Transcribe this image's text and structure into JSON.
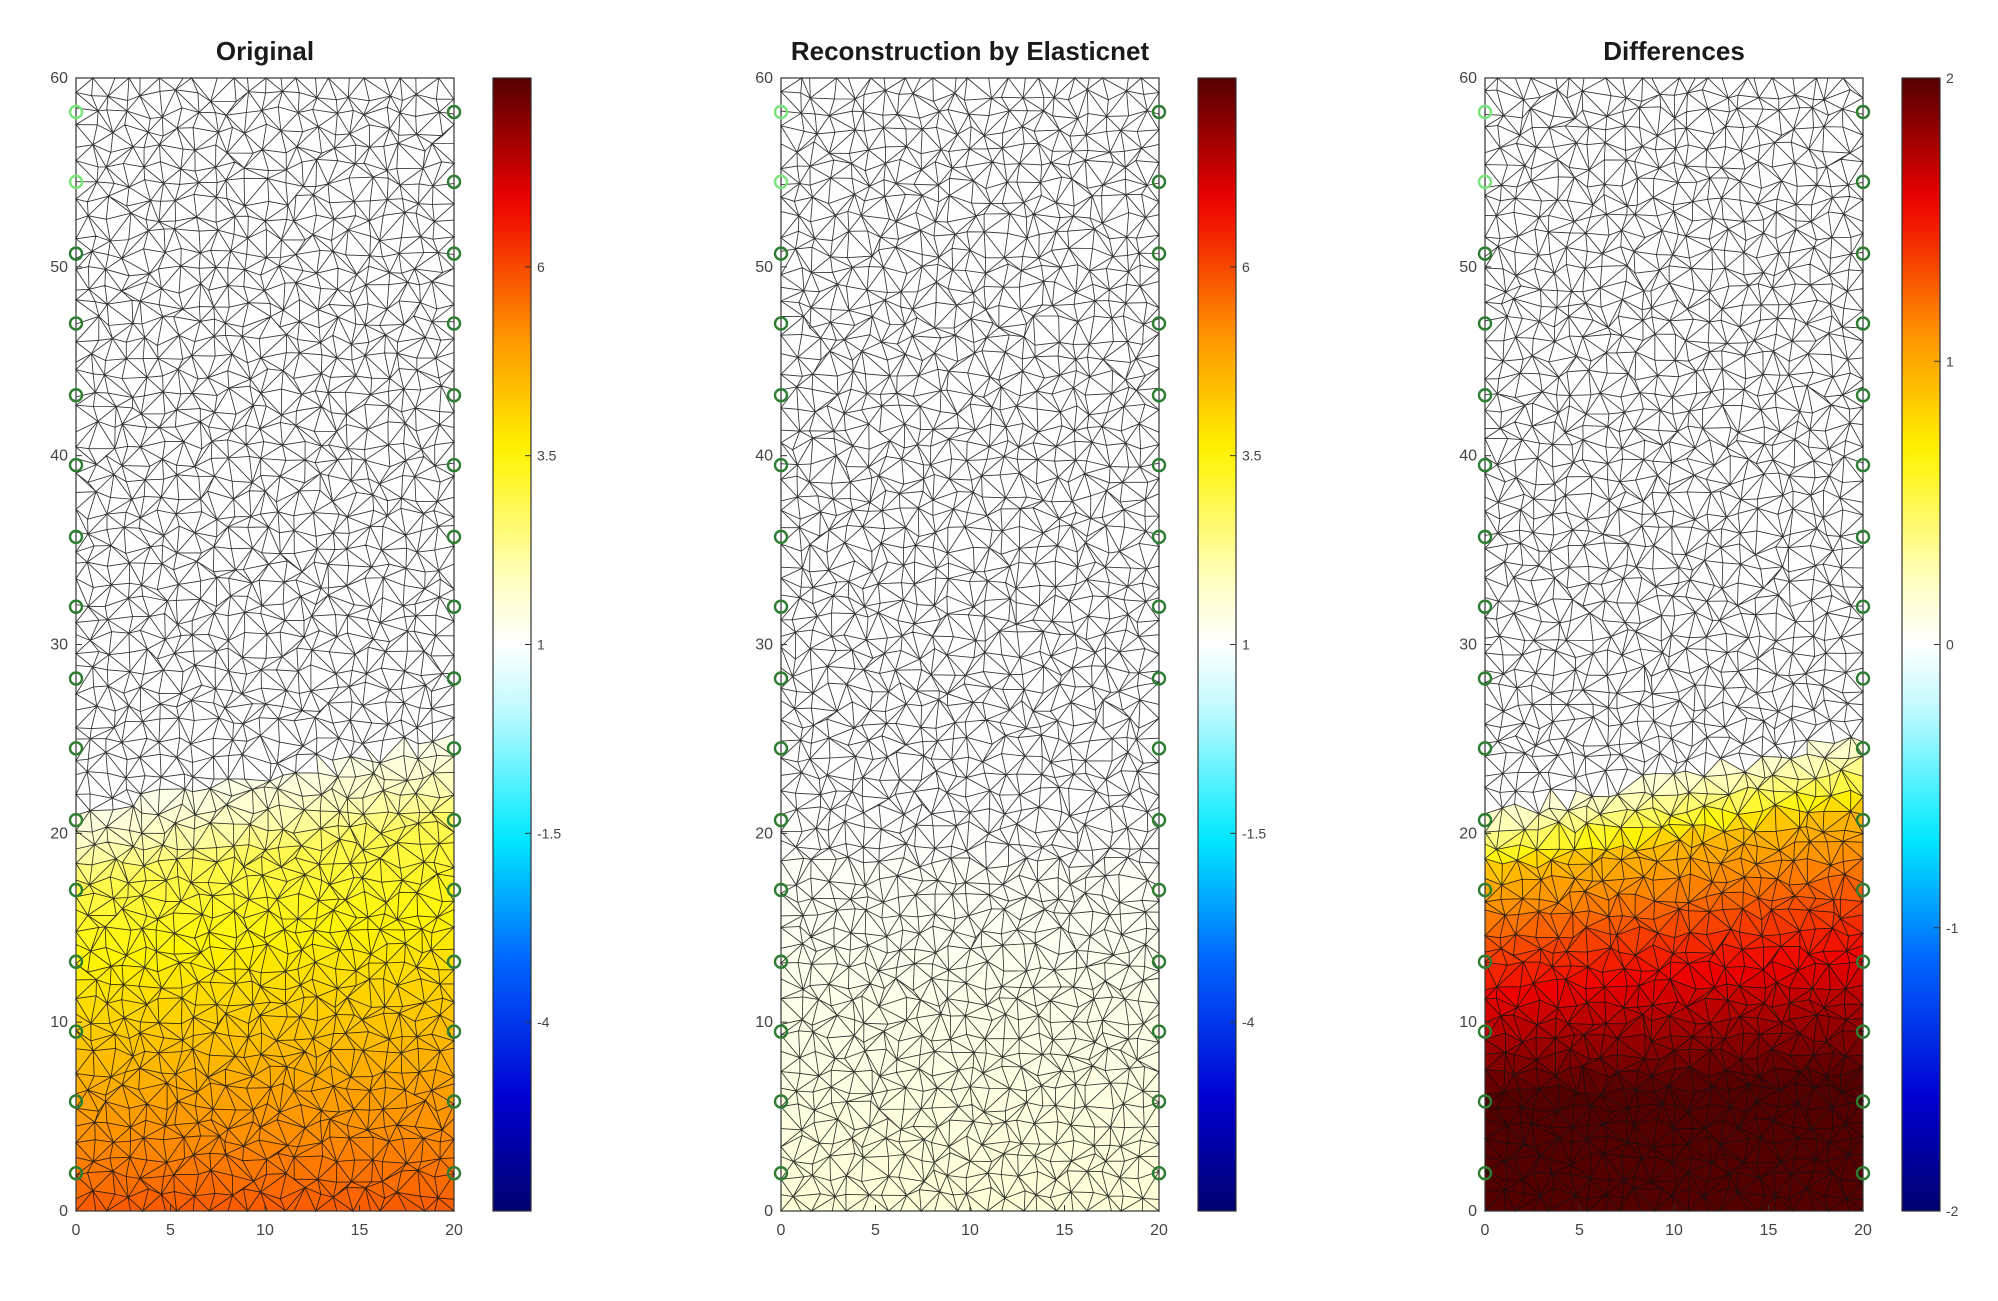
{
  "chart_data": [
    {
      "type": "heatmap",
      "title": "Original",
      "xlim": [
        0,
        20
      ],
      "ylim": [
        0,
        60
      ],
      "xticks": [
        "0",
        "5",
        "10",
        "15",
        "20"
      ],
      "yticks": [
        "0",
        "10",
        "20",
        "30",
        "40",
        "50",
        "60"
      ],
      "colorbar": {
        "clim": [
          -6.5,
          8.5
        ],
        "ticks": [
          "6",
          "3.5",
          "1",
          "-1.5",
          "-4"
        ],
        "tick_values": [
          6,
          3.5,
          1,
          -1.5,
          -4
        ],
        "colormap": "jet-white-center"
      },
      "field": {
        "kind": "region",
        "top_left_y": 21,
        "top_right_y": 25,
        "bottom_value": 5.8,
        "top_value": 2.2,
        "edge_value": 1.3
      },
      "electrodes": {
        "left_x": 0,
        "right_x": 20,
        "y": [
          2,
          5.8,
          9.5,
          13.2,
          17,
          20.7,
          24.5,
          28.2,
          32,
          35.7,
          39.5,
          43.2,
          47,
          50.7,
          54.5,
          58.2
        ],
        "highlight": [
          [
            0,
            58.2
          ],
          [
            0,
            54.5
          ]
        ]
      }
    },
    {
      "type": "heatmap",
      "title": "Reconstruction by Elasticnet",
      "xlim": [
        0,
        20
      ],
      "ylim": [
        0,
        60
      ],
      "xticks": [
        "0",
        "5",
        "10",
        "15",
        "20"
      ],
      "yticks": [
        "0",
        "10",
        "20",
        "30",
        "40",
        "50",
        "60"
      ],
      "colorbar": {
        "clim": [
          -6.5,
          8.5
        ],
        "ticks": [
          "6",
          "3.5",
          "1",
          "-1.5",
          "-4"
        ],
        "tick_values": [
          6,
          3.5,
          1,
          -1.5,
          -4
        ],
        "colormap": "jet-white-center"
      },
      "field": {
        "kind": "gradient",
        "bottom_value": 1.55,
        "mid_y": 22,
        "top_value": 1.0
      },
      "electrodes": {
        "left_x": 0,
        "right_x": 20,
        "y": [
          2,
          5.8,
          9.5,
          13.2,
          17,
          20.7,
          24.5,
          28.2,
          32,
          35.7,
          39.5,
          43.2,
          47,
          50.7,
          54.5,
          58.2
        ],
        "highlight": [
          [
            0,
            58.2
          ],
          [
            0,
            54.5
          ]
        ]
      }
    },
    {
      "type": "heatmap",
      "title": "Differences",
      "xlim": [
        0,
        20
      ],
      "ylim": [
        0,
        60
      ],
      "xticks": [
        "0",
        "5",
        "10",
        "15",
        "20"
      ],
      "yticks": [
        "0",
        "10",
        "20",
        "30",
        "40",
        "50",
        "60"
      ],
      "colorbar": {
        "clim": [
          -2,
          2
        ],
        "ticks": [
          "2",
          "1",
          "0",
          "-1",
          "-2"
        ],
        "tick_values": [
          2,
          1,
          0,
          -1,
          -2
        ],
        "colormap": "jet-white-center"
      },
      "field": {
        "kind": "difference",
        "top_left_y": 21,
        "top_right_y": 25,
        "bottom_value": 2.3,
        "top_value": 0.55,
        "edge_value": 0.15
      },
      "electrodes": {
        "left_x": 0,
        "right_x": 20,
        "y": [
          2,
          5.8,
          9.5,
          13.2,
          17,
          20.7,
          24.5,
          28.2,
          32,
          35.7,
          39.5,
          43.2,
          47,
          50.7,
          54.5,
          58.2
        ],
        "highlight": [
          [
            0,
            58.2
          ],
          [
            0,
            54.5
          ]
        ]
      }
    }
  ],
  "colors": {
    "mesh_line": "#111111",
    "electrode": "#2e7d32",
    "electrode_highlight": "#7be37b"
  }
}
